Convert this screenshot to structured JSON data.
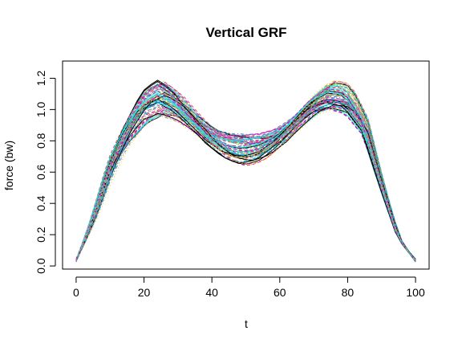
{
  "chart_data": {
    "type": "line",
    "title": "Vertical GRF",
    "xlabel": "t",
    "ylabel": "force (bw)",
    "xlim": [
      -4,
      104
    ],
    "ylim": [
      -0.02,
      1.31
    ],
    "xticks": [
      0,
      20,
      40,
      60,
      80,
      100
    ],
    "yticks": [
      0.0,
      0.2,
      0.4,
      0.6,
      0.8,
      1.0,
      1.2
    ],
    "ytick_labels": [
      "0.0",
      "0.2",
      "0.4",
      "0.6",
      "0.8",
      "1.0",
      "1.2"
    ],
    "grid": false,
    "legend": "none",
    "x": [
      0,
      5,
      10,
      15,
      20,
      25,
      30,
      35,
      40,
      45,
      50,
      55,
      60,
      65,
      70,
      75,
      80,
      85,
      90,
      95,
      100
    ],
    "mean_curve": [
      0.03,
      0.3,
      0.62,
      0.85,
      1.02,
      1.08,
      1.02,
      0.92,
      0.82,
      0.76,
      0.74,
      0.76,
      0.82,
      0.92,
      1.03,
      1.09,
      1.07,
      0.9,
      0.52,
      0.18,
      0.03
    ],
    "series_count": 80,
    "line_colors": [
      "#000000",
      "#DF536B",
      "#61D04F",
      "#2297E6",
      "#28E2E5",
      "#CD0BBC",
      "#F5C710",
      "#9E9E9E"
    ],
    "line_styles": [
      "solid",
      "dashed",
      "dotted",
      "dotdash"
    ],
    "range_observed": {
      "peak1": [
        0.97,
        1.29
      ],
      "valley": [
        0.56,
        0.89
      ],
      "peak2": [
        0.96,
        1.25
      ]
    }
  }
}
